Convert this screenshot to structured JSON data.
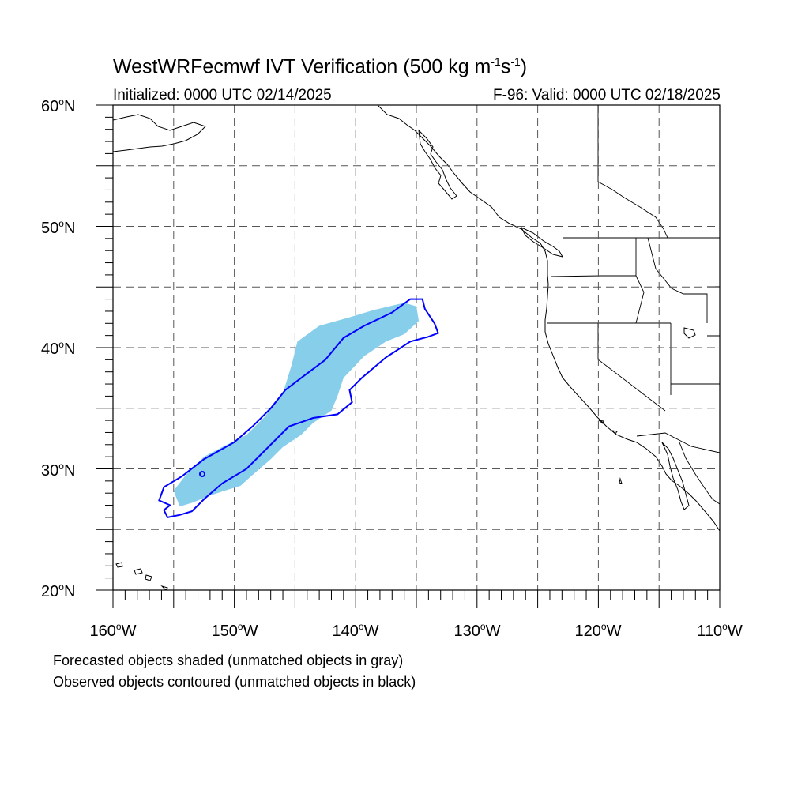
{
  "title": {
    "main": "WestWRFecmwf IVT Verification (500 kg m",
    "exp1": "-1",
    "mid": "s",
    "exp2": "-1",
    "end": ")"
  },
  "initialized": "Initialized: 0000 UTC 02/14/2025",
  "valid": "F-96: Valid: 0000 UTC 02/18/2025",
  "lat_labels": [
    {
      "num": "60",
      "hem": "N"
    },
    {
      "num": "50",
      "hem": "N"
    },
    {
      "num": "40",
      "hem": "N"
    },
    {
      "num": "30",
      "hem": "N"
    },
    {
      "num": "20",
      "hem": "N"
    }
  ],
  "lon_labels": [
    {
      "num": "160",
      "hem": "W"
    },
    {
      "num": "150",
      "hem": "W"
    },
    {
      "num": "140",
      "hem": "W"
    },
    {
      "num": "130",
      "hem": "W"
    },
    {
      "num": "120",
      "hem": "W"
    },
    {
      "num": "110",
      "hem": "W"
    }
  ],
  "notes": [
    "Forecasted objects shaded (unmatched objects in gray)",
    "Observed objects contoured (unmatched objects in black)"
  ],
  "colors": {
    "forecast_fill": "#87ceeb",
    "observed_contour": "#0000ff",
    "coastline": "#000000",
    "grid": "#555555"
  },
  "map_extent": {
    "lon": [
      -160,
      -110
    ],
    "lat": [
      20,
      60
    ]
  },
  "forecast_object": {
    "lonlat": [
      [
        -154.5,
        26.9
      ],
      [
        -155.0,
        28.2
      ],
      [
        -154.0,
        29.5
      ],
      [
        -152.5,
        31.0
      ],
      [
        -151.0,
        31.8
      ],
      [
        -149.0,
        32.8
      ],
      [
        -147.5,
        34.3
      ],
      [
        -146.0,
        36.2
      ],
      [
        -145.3,
        38.5
      ],
      [
        -144.8,
        40.5
      ],
      [
        -143.0,
        41.8
      ],
      [
        -140.5,
        42.5
      ],
      [
        -138.5,
        43.1
      ],
      [
        -136.0,
        43.7
      ],
      [
        -135.0,
        43.4
      ],
      [
        -134.8,
        42.2
      ],
      [
        -136.0,
        41.1
      ],
      [
        -137.5,
        40.5
      ],
      [
        -139.3,
        39.3
      ],
      [
        -141.0,
        37.5
      ],
      [
        -141.5,
        36.0
      ],
      [
        -142.0,
        34.8
      ],
      [
        -143.5,
        33.8
      ],
      [
        -144.5,
        32.8
      ],
      [
        -146.0,
        31.8
      ],
      [
        -147.0,
        30.8
      ],
      [
        -148.5,
        29.5
      ],
      [
        -149.5,
        28.6
      ],
      [
        -150.8,
        28.2
      ],
      [
        -152.0,
        27.8
      ],
      [
        -153.5,
        27.2
      ]
    ]
  },
  "observed_object": {
    "lonlat": [
      [
        -156.2,
        27.4
      ],
      [
        -155.8,
        28.5
      ],
      [
        -154.3,
        29.4
      ],
      [
        -152.5,
        30.8
      ],
      [
        -150.0,
        32.2
      ],
      [
        -148.5,
        33.5
      ],
      [
        -147.0,
        35.0
      ],
      [
        -145.8,
        36.5
      ],
      [
        -144.5,
        37.5
      ],
      [
        -142.5,
        39.0
      ],
      [
        -141.0,
        40.8
      ],
      [
        -139.3,
        41.8
      ],
      [
        -137.0,
        42.9
      ],
      [
        -135.5,
        44.0
      ],
      [
        -134.5,
        44.0
      ],
      [
        -134.3,
        43.2
      ],
      [
        -133.5,
        42.0
      ],
      [
        -133.2,
        41.2
      ],
      [
        -134.0,
        40.9
      ],
      [
        -135.5,
        40.5
      ],
      [
        -137.5,
        39.2
      ],
      [
        -139.5,
        37.5
      ],
      [
        -140.5,
        36.5
      ],
      [
        -140.3,
        35.5
      ],
      [
        -141.5,
        34.5
      ],
      [
        -143.5,
        34.2
      ],
      [
        -145.5,
        33.5
      ],
      [
        -147.5,
        31.5
      ],
      [
        -149.0,
        30.0
      ],
      [
        -151.0,
        28.8
      ],
      [
        -152.5,
        27.5
      ],
      [
        -153.5,
        26.5
      ],
      [
        -154.5,
        26.2
      ],
      [
        -155.5,
        26.0
      ],
      [
        -155.8,
        26.6
      ],
      [
        -155.3,
        27.0
      ]
    ]
  }
}
